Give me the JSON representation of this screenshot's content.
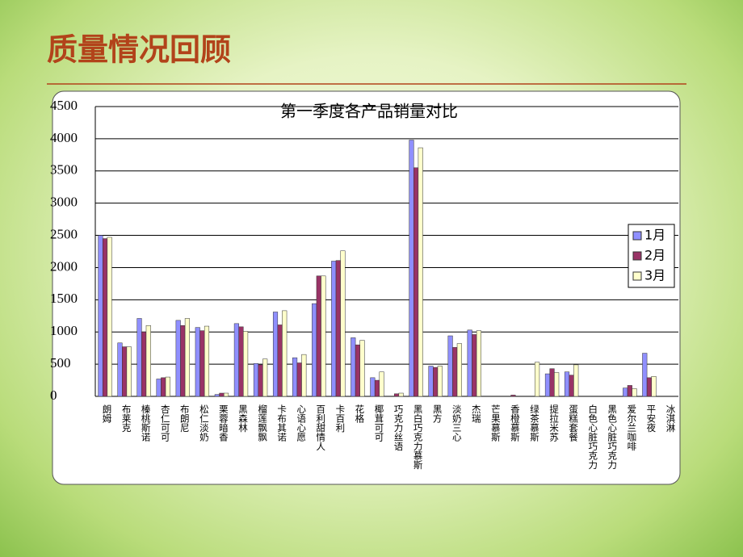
{
  "page_title": "质量情况回顾",
  "chart_data": {
    "type": "bar",
    "title": "第一季度各产品销量对比",
    "categories": [
      "朗姆",
      "布莱克",
      "榛桃斯诺",
      "杏仁可可",
      "布朗尼",
      "松仁淡奶",
      "栗蓉暗香",
      "黑森林",
      "榴莲飘飘",
      "卡布其诺",
      "心语心愿",
      "百利甜情人",
      "卡百利",
      "花格",
      "椰茸可可",
      "巧克力丝语",
      "黑白巧克力慕斯",
      "黑方",
      "淡奶三心",
      "杰瑞",
      "芒果慕斯",
      "香橙慕斯",
      "绿茶慕斯",
      "提拉米苏",
      "蛋糕套餐",
      "白色心脏巧克力",
      "黑色心脏巧克力",
      "爱尔兰咖啡",
      "平安夜",
      "冰淇淋"
    ],
    "series": [
      {
        "name": "1月",
        "color": "#8f8fff",
        "values": [
          2500,
          830,
          1210,
          270,
          1180,
          1070,
          30,
          1130,
          510,
          1310,
          600,
          1440,
          2100,
          910,
          290,
          0,
          3980,
          470,
          940,
          1030,
          0,
          0,
          0,
          350,
          380,
          0,
          0,
          130,
          670,
          0
        ]
      },
      {
        "name": "2月",
        "color": "#993366",
        "values": [
          2450,
          770,
          1000,
          290,
          1100,
          1020,
          50,
          1080,
          490,
          1110,
          520,
          1870,
          2110,
          800,
          250,
          40,
          3550,
          450,
          760,
          960,
          0,
          20,
          0,
          430,
          330,
          0,
          0,
          170,
          290,
          0
        ]
      },
      {
        "name": "3月",
        "color": "#ffffcc",
        "values": [
          2470,
          770,
          1100,
          300,
          1210,
          1090,
          50,
          1010,
          580,
          1330,
          650,
          1870,
          2260,
          870,
          380,
          50,
          3860,
          470,
          820,
          1020,
          0,
          0,
          530,
          370,
          490,
          0,
          0,
          120,
          310,
          0
        ]
      }
    ],
    "ylim": [
      0,
      4500
    ],
    "yticks": [
      0,
      500,
      1000,
      1500,
      2000,
      2500,
      3000,
      3500,
      4000,
      4500
    ],
    "grid": true,
    "legend": "right"
  }
}
